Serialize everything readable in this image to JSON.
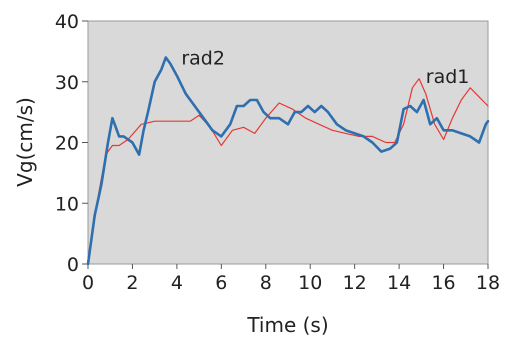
{
  "chart_data": {
    "type": "line",
    "title": "",
    "xlabel": "Time (s)",
    "ylabel": "Vg(cm/s)",
    "xlim": [
      0,
      18
    ],
    "ylim": [
      0,
      40
    ],
    "xticks": [
      0,
      2,
      4,
      6,
      8,
      10,
      12,
      14,
      16,
      18
    ],
    "yticks": [
      0,
      10,
      20,
      30,
      40
    ],
    "xtick_labels": [
      "0",
      "2",
      "4",
      "6",
      "8",
      "10",
      "12",
      "14",
      "16",
      "18"
    ],
    "ytick_labels": [
      "0",
      "10",
      "20",
      "30",
      "40"
    ],
    "plot_background": "#d9d9d9",
    "grid": false,
    "series": [
      {
        "name": "rad2",
        "color": "#2e6faf",
        "x": [
          0,
          0.3,
          0.6,
          0.9,
          1.1,
          1.2,
          1.4,
          1.6,
          2.0,
          2.3,
          2.5,
          2.7,
          3.0,
          3.3,
          3.5,
          3.7,
          4.0,
          4.4,
          4.8,
          5.2,
          5.6,
          6.0,
          6.4,
          6.7,
          7.0,
          7.3,
          7.6,
          7.9,
          8.2,
          8.6,
          9.0,
          9.3,
          9.6,
          9.9,
          10.2,
          10.5,
          10.8,
          11.2,
          11.6,
          12.0,
          12.4,
          12.8,
          13.2,
          13.6,
          13.9,
          14.2,
          14.5,
          14.8,
          15.1,
          15.4,
          15.7,
          16.0,
          16.4,
          16.8,
          17.2,
          17.6,
          17.9,
          18.0
        ],
        "y": [
          0,
          8,
          13,
          20,
          24,
          23,
          21,
          21,
          20,
          18,
          22,
          25,
          30,
          32,
          34,
          33,
          31,
          28,
          26,
          24,
          22,
          21,
          23,
          26,
          26,
          27,
          27,
          25,
          24,
          24,
          23,
          25,
          25,
          26,
          25,
          26,
          25,
          23,
          22,
          21.5,
          21,
          20,
          18.5,
          19,
          20,
          25.5,
          26,
          25,
          27,
          23,
          24,
          22,
          22,
          21.5,
          21,
          20,
          23,
          23.5
        ]
      },
      {
        "name": "rad1",
        "color": "#e53935",
        "x": [
          0,
          0.2,
          0.5,
          0.8,
          1.1,
          1.4,
          1.8,
          2.4,
          3.0,
          3.6,
          4.2,
          4.6,
          5.0,
          5.5,
          6.0,
          6.5,
          7.0,
          7.5,
          8.0,
          8.6,
          9.2,
          9.8,
          10.4,
          11.0,
          11.6,
          12.2,
          12.8,
          13.4,
          13.8,
          14.2,
          14.6,
          14.9,
          15.2,
          15.6,
          16.0,
          16.4,
          16.8,
          17.2,
          17.6,
          18.0
        ],
        "y": [
          0,
          5,
          12,
          18,
          19.5,
          19.5,
          20.5,
          23,
          23.5,
          23.5,
          23.5,
          23.5,
          24.5,
          22.5,
          19.5,
          22,
          22.5,
          21.5,
          24,
          26.5,
          25.5,
          24,
          23,
          22,
          21.5,
          21,
          21,
          20,
          20,
          23,
          29,
          30.5,
          28,
          23,
          20.5,
          24,
          27,
          29,
          27.5,
          26
        ]
      }
    ],
    "annotations": [
      {
        "text": "rad2",
        "x": 4.2,
        "y": 32.8,
        "series": "rad2"
      },
      {
        "text": "rad1",
        "x": 15.2,
        "y": 29.8,
        "series": "rad1"
      }
    ]
  }
}
